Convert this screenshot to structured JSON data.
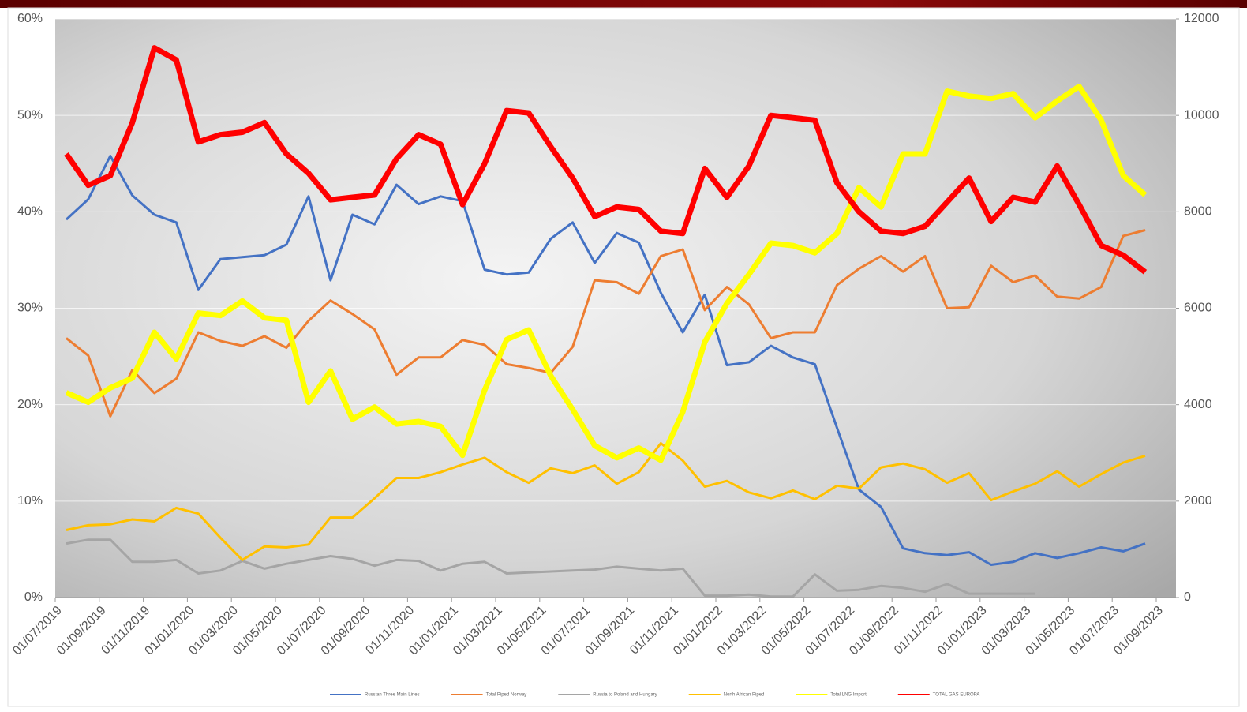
{
  "chart_data": {
    "type": "line",
    "x_labels": [
      "01/07/2019",
      "01/09/2019",
      "01/11/2019",
      "01/01/2020",
      "01/03/2020",
      "01/05/2020",
      "01/07/2020",
      "01/09/2020",
      "01/11/2020",
      "01/01/2021",
      "01/03/2021",
      "01/05/2021",
      "01/07/2021",
      "01/09/2021",
      "01/11/2021",
      "01/01/2022",
      "01/03/2022",
      "01/05/2022",
      "01/07/2022",
      "01/09/2022",
      "01/11/2022",
      "01/01/2023",
      "01/03/2023",
      "01/05/2023",
      "01/07/2023",
      "01/09/2023"
    ],
    "ylim": [
      0,
      60
    ],
    "yticks": [
      {
        "value": 0,
        "label": "0%"
      },
      {
        "value": 10,
        "label": "10%"
      },
      {
        "value": 20,
        "label": "20%"
      },
      {
        "value": 30,
        "label": "30%"
      },
      {
        "value": 40,
        "label": "40%"
      },
      {
        "value": 50,
        "label": "50%"
      },
      {
        "value": 60,
        "label": "60%"
      }
    ],
    "y2lim": [
      0,
      12000
    ],
    "y2ticks": [
      0,
      2000,
      4000,
      6000,
      8000,
      10000,
      12000
    ],
    "grid": true,
    "legend": "bottom",
    "series": [
      {
        "name": "Russian Three Main Lines",
        "color": "#4472c4",
        "values": [
          39.2,
          41.3,
          45.8,
          41.7,
          39.7,
          38.9,
          31.9,
          35.1,
          35.3,
          35.5,
          36.6,
          41.6,
          32.9,
          39.7,
          38.7,
          42.8,
          40.8,
          41.6,
          41.1,
          34.0,
          33.5,
          33.7,
          37.2,
          38.9,
          34.7,
          37.8,
          36.8,
          31.6,
          27.5,
          31.4,
          24.1,
          24.4,
          26.1,
          24.9,
          24.2,
          17.6,
          11.2,
          9.4,
          5.1,
          4.6,
          4.4,
          4.7,
          3.4,
          3.7,
          4.6,
          4.1,
          4.6,
          5.2,
          4.8,
          5.6
        ]
      },
      {
        "name": "Total Piped Norway",
        "color": "#ed7d31",
        "values": [
          26.9,
          25.1,
          18.8,
          23.6,
          21.2,
          22.7,
          27.5,
          26.6,
          26.1,
          27.1,
          25.9,
          28.7,
          30.8,
          29.4,
          27.8,
          23.1,
          24.9,
          24.9,
          26.7,
          26.2,
          24.2,
          23.8,
          23.3,
          26.0,
          32.9,
          32.7,
          31.5,
          35.4,
          36.1,
          29.8,
          32.2,
          30.4,
          26.9,
          27.5,
          27.5,
          32.4,
          34.1,
          35.4,
          33.8,
          35.4,
          30.0,
          30.1,
          34.4,
          32.7,
          33.4,
          31.2,
          31.0,
          32.2,
          37.5,
          38.1
        ]
      },
      {
        "name": "Russia to Poland and Hungary",
        "color": "#a5a5a5",
        "values": [
          5.6,
          6.0,
          6.0,
          3.7,
          3.7,
          3.9,
          2.5,
          2.8,
          3.8,
          3.0,
          3.5,
          3.9,
          4.3,
          4.0,
          3.3,
          3.9,
          3.8,
          2.8,
          3.5,
          3.7,
          2.5,
          2.6,
          2.7,
          2.8,
          2.9,
          3.2,
          3.0,
          2.8,
          3.0,
          0.2,
          0.2,
          0.3,
          0.1,
          0.1,
          2.4,
          0.7,
          0.8,
          1.2,
          1.0,
          0.6,
          1.4,
          0.4,
          0.4,
          0.4,
          0.4,
          null,
          null,
          null,
          null,
          null
        ]
      },
      {
        "name": "North African Piped",
        "color": "#ffc000",
        "values": [
          7.0,
          7.5,
          7.6,
          8.1,
          7.9,
          9.3,
          8.7,
          6.2,
          3.9,
          5.3,
          5.2,
          5.5,
          8.3,
          8.3,
          10.3,
          12.4,
          12.4,
          13.0,
          13.8,
          14.5,
          13.0,
          11.9,
          13.4,
          12.9,
          13.7,
          11.8,
          13.0,
          16.0,
          14.2,
          11.5,
          12.1,
          10.9,
          10.3,
          11.1,
          10.2,
          11.6,
          11.3,
          13.5,
          13.9,
          13.3,
          11.9,
          12.9,
          10.1,
          11.0,
          11.8,
          13.1,
          11.5,
          12.8,
          14.0,
          14.7
        ]
      },
      {
        "name": "Total LNG Import",
        "color": "#ffff00",
        "axis": "y2",
        "values": [
          4250,
          4050,
          4350,
          4550,
          5500,
          4950,
          5900,
          5850,
          6150,
          5800,
          5750,
          4050,
          4700,
          3700,
          3950,
          3600,
          3650,
          3550,
          2950,
          4300,
          5350,
          5550,
          4600,
          3900,
          3150,
          2900,
          3100,
          2850,
          3850,
          5300,
          6100,
          6700,
          7350,
          7300,
          7150,
          7550,
          8500,
          8100,
          9200,
          9200,
          10500,
          10400,
          10350,
          10450,
          9950,
          10300,
          10600,
          9900,
          8750,
          8350
        ]
      },
      {
        "name": "TOTAL GAS EUROPA",
        "color": "#ff0000",
        "axis": "y2",
        "values": [
          9200,
          8550,
          8750,
          9850,
          11400,
          11150,
          9450,
          9600,
          9650,
          9850,
          9200,
          8800,
          8250,
          8300,
          8350,
          9100,
          9600,
          9400,
          8150,
          9000,
          10100,
          10050,
          9350,
          8700,
          7900,
          8100,
          8050,
          7600,
          7550,
          8900,
          8300,
          8950,
          10000,
          9950,
          9900,
          8600,
          8000,
          7600,
          7550,
          7700,
          8200,
          8700,
          7800,
          8300,
          8200,
          8950,
          8150,
          7300,
          7100,
          6750
        ]
      }
    ]
  }
}
